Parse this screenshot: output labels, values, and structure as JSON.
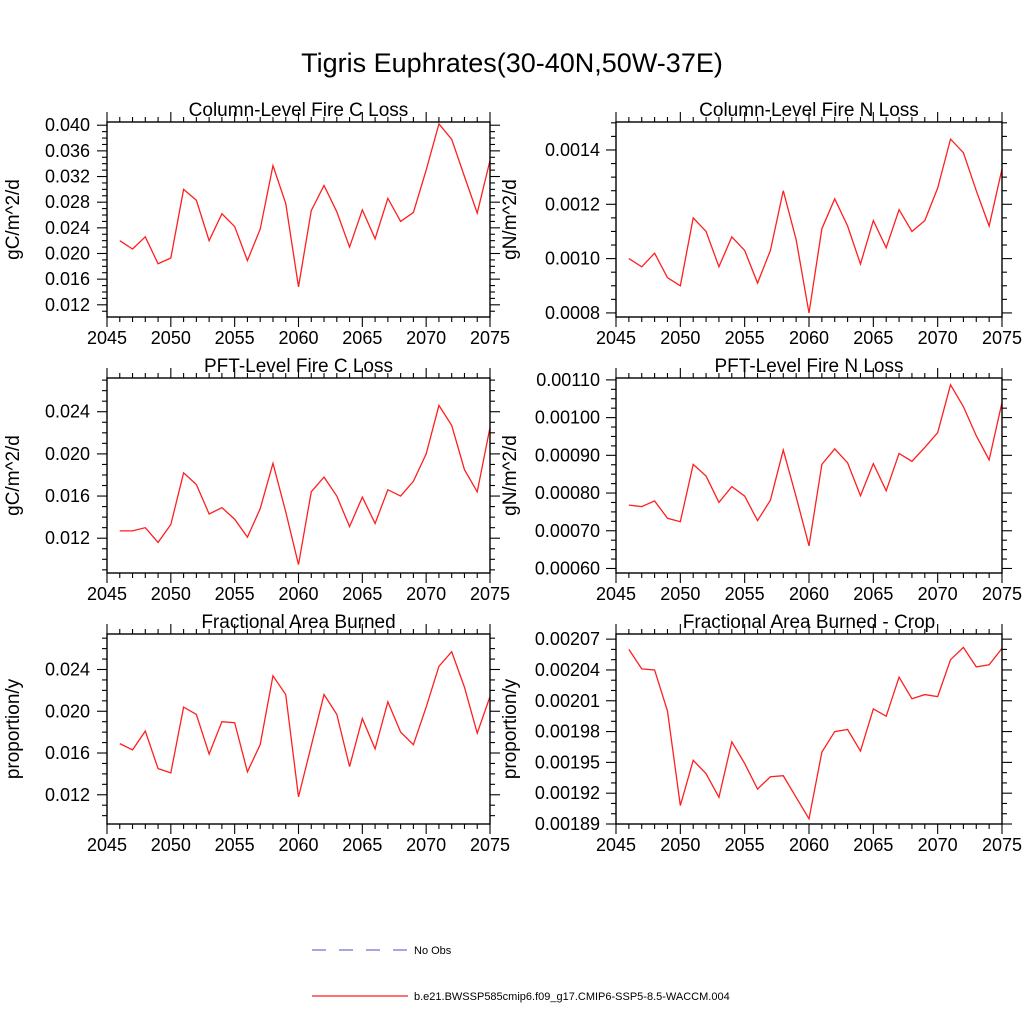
{
  "title": "Tigris Euphrates(30-40N,50W-37E)",
  "legend": {
    "position": "bottom",
    "no_obs": {
      "label": "No Obs",
      "color": "#7070d0",
      "style": "dashed"
    },
    "model": {
      "label": "b.e21.BWSSP585cmip6.f09_g17.CMIP6-SSP5-8.5-WACCM.004",
      "color": "#ff1f1f",
      "style": "solid"
    }
  },
  "series_color": "#ff1f1f",
  "chart_data": {
    "type": "line",
    "grid": false,
    "legend_position": "bottom",
    "xlim": [
      2045,
      2075
    ],
    "xticks": [
      2045,
      2050,
      2055,
      2060,
      2065,
      2070,
      2075
    ],
    "x_minor_step": 1,
    "x": [
      2046,
      2047,
      2048,
      2049,
      2050,
      2051,
      2052,
      2053,
      2054,
      2055,
      2056,
      2057,
      2058,
      2059,
      2060,
      2061,
      2062,
      2063,
      2064,
      2065,
      2066,
      2067,
      2068,
      2069,
      2070,
      2071,
      2072,
      2073,
      2074,
      2075
    ],
    "panels": [
      {
        "title": "Column-Level Fire C Loss",
        "ylabel": "gC/m^2/d",
        "ylim": [
          0.0101,
          0.0405
        ],
        "yticks": [
          0.012,
          0.016,
          0.02,
          0.024,
          0.028,
          0.032,
          0.036,
          0.04
        ],
        "ytick_labels": [
          "0.012",
          "0.016",
          "0.020",
          "0.024",
          "0.028",
          "0.032",
          "0.036",
          "0.040"
        ],
        "y_minor_step": 0.001,
        "values": [
          0.022,
          0.0207,
          0.0226,
          0.0184,
          0.0193,
          0.03,
          0.0283,
          0.022,
          0.0262,
          0.0242,
          0.0189,
          0.0238,
          0.0337,
          0.0278,
          0.0148,
          0.0267,
          0.0306,
          0.0265,
          0.021,
          0.0268,
          0.0223,
          0.0286,
          0.025,
          0.0264,
          0.033,
          0.0402,
          0.0378,
          0.032,
          0.0263,
          0.0345
        ]
      },
      {
        "title": "Column-Level Fire N Loss",
        "ylabel": "gN/m^2/d",
        "ylim": [
          0.000785,
          0.001503
        ],
        "yticks": [
          0.0008,
          0.001,
          0.0012,
          0.0014
        ],
        "ytick_labels": [
          "0.0008",
          "0.0010",
          "0.0012",
          "0.0014"
        ],
        "y_minor_step": 5e-05,
        "values": [
          0.001,
          0.00097,
          0.00102,
          0.00093,
          0.0009,
          0.00115,
          0.0011,
          0.00097,
          0.00108,
          0.00103,
          0.00091,
          0.00103,
          0.00125,
          0.00107,
          0.0008,
          0.00111,
          0.00122,
          0.00112,
          0.00098,
          0.00114,
          0.00104,
          0.00118,
          0.0011,
          0.00114,
          0.00126,
          0.00144,
          0.00139,
          0.00125,
          0.00112,
          0.00133
        ]
      },
      {
        "title": "PFT-Level Fire C Loss",
        "ylabel": "gC/m^2/d",
        "ylim": [
          0.0087,
          0.0272
        ],
        "yticks": [
          0.012,
          0.016,
          0.02,
          0.024
        ],
        "ytick_labels": [
          "0.012",
          "0.016",
          "0.020",
          "0.024"
        ],
        "y_minor_step": 0.001,
        "values": [
          0.0127,
          0.0127,
          0.013,
          0.0116,
          0.0133,
          0.0182,
          0.0171,
          0.0143,
          0.0149,
          0.0138,
          0.0121,
          0.0148,
          0.0191,
          0.0145,
          0.0095,
          0.0164,
          0.0178,
          0.016,
          0.0131,
          0.0159,
          0.0134,
          0.0166,
          0.016,
          0.0174,
          0.02,
          0.0246,
          0.0227,
          0.0185,
          0.0164,
          0.0225
        ]
      },
      {
        "title": "PFT-Level Fire N Loss",
        "ylabel": "gN/m^2/d",
        "ylim": [
          0.000588,
          0.001105
        ],
        "yticks": [
          0.0006,
          0.0007,
          0.0008,
          0.0009,
          0.001,
          0.0011
        ],
        "ytick_labels": [
          "0.00060",
          "0.00070",
          "0.00080",
          "0.00090",
          "0.00100",
          "0.00110"
        ],
        "y_minor_step": 2.5e-05,
        "values": [
          0.000768,
          0.000764,
          0.000779,
          0.000733,
          0.000724,
          0.000876,
          0.000845,
          0.000775,
          0.000817,
          0.000792,
          0.000727,
          0.000781,
          0.000914,
          0.00079,
          0.00066,
          0.000876,
          0.000917,
          0.00088,
          0.000793,
          0.000878,
          0.000806,
          0.000905,
          0.000884,
          0.000921,
          0.00096,
          0.001087,
          0.001029,
          0.000952,
          0.000888,
          0.00104
        ]
      },
      {
        "title": "Fractional Area Burned",
        "ylabel": "proportion/y",
        "ylim": [
          0.0092,
          0.0274
        ],
        "yticks": [
          0.012,
          0.016,
          0.02,
          0.024
        ],
        "ytick_labels": [
          "0.012",
          "0.016",
          "0.020",
          "0.024"
        ],
        "y_minor_step": 0.001,
        "values": [
          0.0169,
          0.0163,
          0.0181,
          0.0145,
          0.0141,
          0.0204,
          0.0197,
          0.0159,
          0.019,
          0.0189,
          0.0142,
          0.0168,
          0.0234,
          0.0216,
          0.0118,
          0.0167,
          0.0216,
          0.0197,
          0.0147,
          0.0193,
          0.0164,
          0.0209,
          0.018,
          0.0168,
          0.0204,
          0.0243,
          0.0257,
          0.0223,
          0.0179,
          0.0214
        ]
      },
      {
        "title": "Fractional Area Burned - Crop",
        "ylabel": "proportion/y",
        "ylim": [
          0.00189,
          0.002075
        ],
        "yticks": [
          0.00189,
          0.00192,
          0.00195,
          0.00198,
          0.00201,
          0.00204,
          0.00207
        ],
        "ytick_labels": [
          "0.00189",
          "0.00192",
          "0.00195",
          "0.00198",
          "0.00201",
          "0.00204",
          "0.00207"
        ],
        "y_minor_step": 1e-05,
        "values": [
          0.00206,
          0.002041,
          0.00204,
          0.002,
          0.001908,
          0.001952,
          0.001939,
          0.001916,
          0.00197,
          0.001949,
          0.001924,
          0.001936,
          0.001937,
          0.001916,
          0.001895,
          0.00196,
          0.00198,
          0.001982,
          0.001961,
          0.002002,
          0.001995,
          0.002033,
          0.002012,
          0.002016,
          0.002014,
          0.00205,
          0.002062,
          0.002043,
          0.002045,
          0.002061
        ]
      }
    ]
  }
}
